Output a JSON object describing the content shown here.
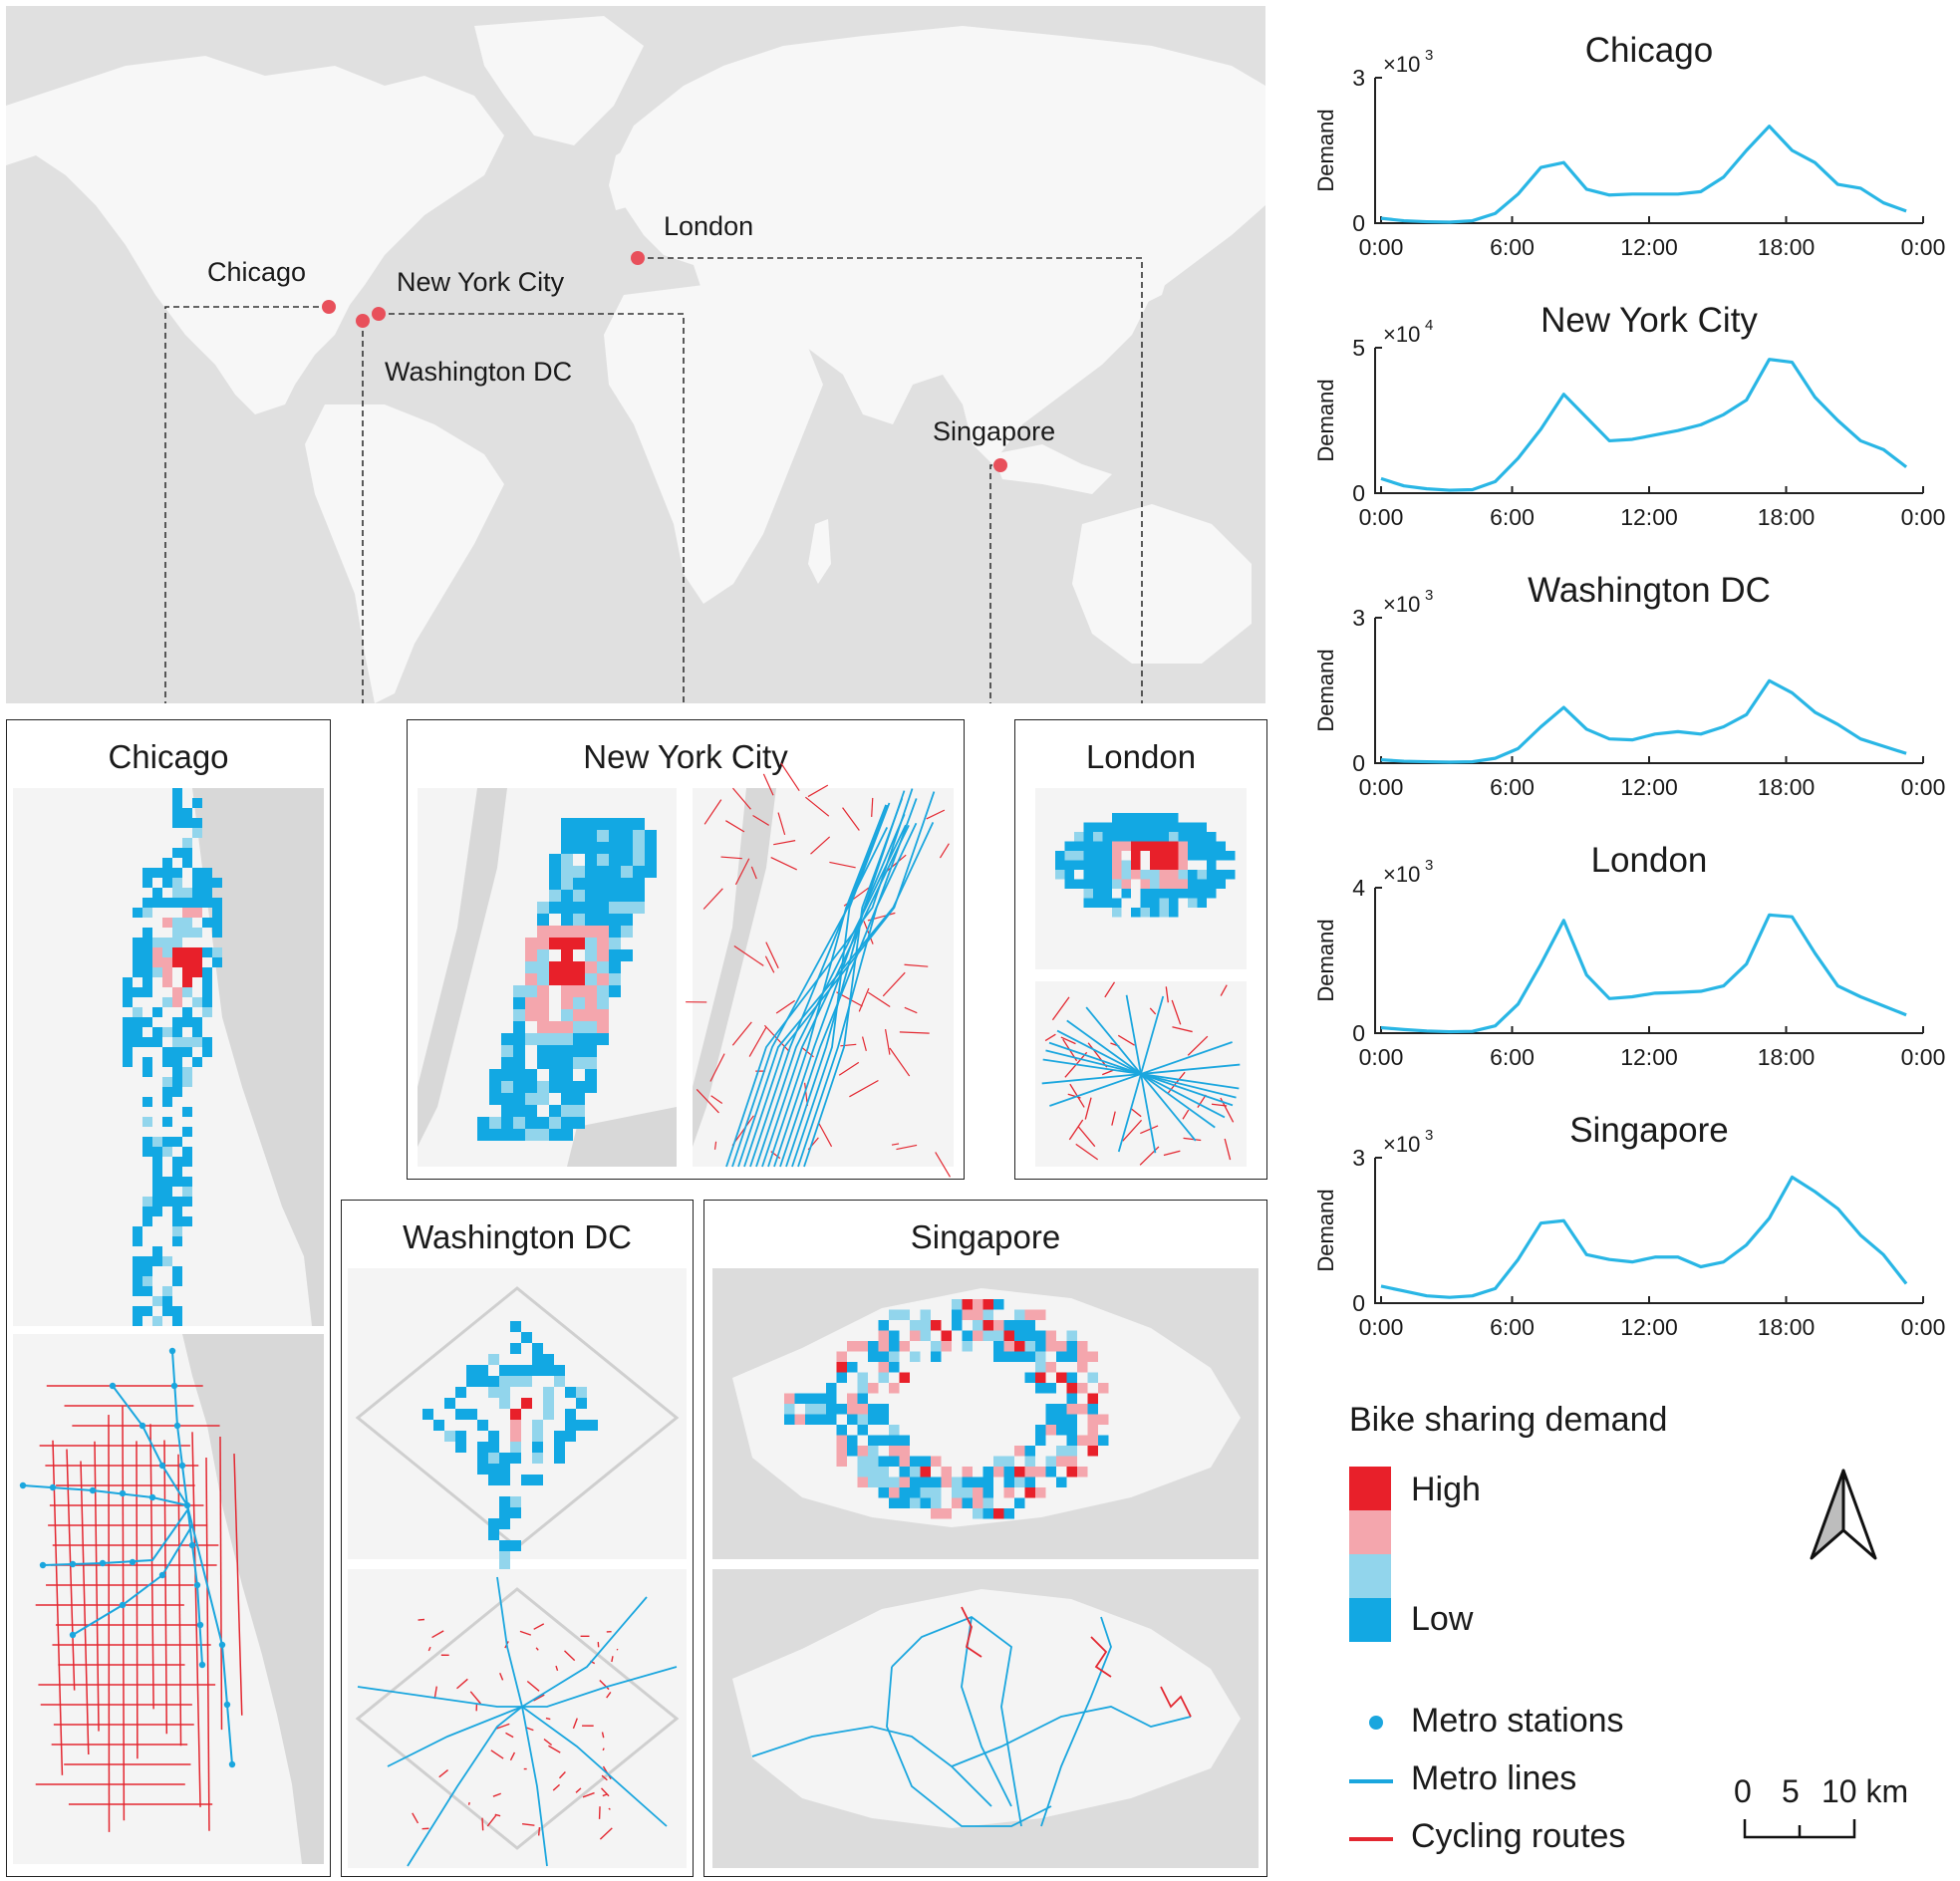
{
  "world_map": {
    "cities": [
      {
        "name": "Chicago"
      },
      {
        "name": "New York City"
      },
      {
        "name": "Washington DC"
      },
      {
        "name": "London"
      },
      {
        "name": "Singapore"
      }
    ]
  },
  "panels": {
    "chicago": {
      "title": "Chicago"
    },
    "nyc": {
      "title": "New York City"
    },
    "london": {
      "title": "London"
    },
    "washington": {
      "title": "Washington DC"
    },
    "singapore": {
      "title": "Singapore"
    }
  },
  "chart_data": [
    {
      "type": "line",
      "title": "Chicago",
      "ylabel": "Demand",
      "multiplier": "×10",
      "exponent": "3",
      "ylim": [
        0,
        3
      ],
      "yticks": [
        "0",
        "3"
      ],
      "xticks": [
        "0:00",
        "6:00",
        "12:00",
        "18:00",
        "0:00"
      ],
      "xlim": [
        0,
        24
      ],
      "x": [
        0,
        1,
        2,
        3,
        4,
        5,
        6,
        7,
        8,
        9,
        10,
        11,
        12,
        13,
        14,
        15,
        16,
        17,
        18,
        19,
        20,
        21,
        22,
        23
      ],
      "values": [
        0.1,
        0.05,
        0.03,
        0.02,
        0.05,
        0.2,
        0.6,
        1.15,
        1.25,
        0.7,
        0.58,
        0.6,
        0.6,
        0.6,
        0.65,
        0.95,
        1.5,
        2.0,
        1.5,
        1.25,
        0.8,
        0.72,
        0.42,
        0.25
      ],
      "color": "#29b6e5"
    },
    {
      "type": "line",
      "title": "New York City",
      "ylabel": "Demand",
      "multiplier": "×10",
      "exponent": "4",
      "ylim": [
        0,
        5
      ],
      "yticks": [
        "0",
        "5"
      ],
      "xticks": [
        "0:00",
        "6:00",
        "12:00",
        "18:00",
        "0:00"
      ],
      "xlim": [
        0,
        24
      ],
      "x": [
        0,
        1,
        2,
        3,
        4,
        5,
        6,
        7,
        8,
        9,
        10,
        11,
        12,
        13,
        14,
        15,
        16,
        17,
        18,
        19,
        20,
        21,
        22,
        23
      ],
      "values": [
        0.5,
        0.25,
        0.15,
        0.1,
        0.12,
        0.4,
        1.2,
        2.2,
        3.4,
        2.6,
        1.8,
        1.85,
        2.0,
        2.15,
        2.35,
        2.7,
        3.2,
        4.6,
        4.5,
        3.3,
        2.5,
        1.8,
        1.5,
        0.9
      ],
      "color": "#29b6e5"
    },
    {
      "type": "line",
      "title": "Washington DC",
      "ylabel": "Demand",
      "multiplier": "×10",
      "exponent": "3",
      "ylim": [
        0,
        3
      ],
      "yticks": [
        "0",
        "3"
      ],
      "xticks": [
        "0:00",
        "6:00",
        "12:00",
        "18:00",
        "0:00"
      ],
      "xlim": [
        0,
        24
      ],
      "x": [
        0,
        1,
        2,
        3,
        4,
        5,
        6,
        7,
        8,
        9,
        10,
        11,
        12,
        13,
        14,
        15,
        16,
        17,
        18,
        19,
        20,
        21,
        22,
        23
      ],
      "values": [
        0.07,
        0.04,
        0.03,
        0.02,
        0.03,
        0.1,
        0.3,
        0.75,
        1.15,
        0.7,
        0.5,
        0.48,
        0.6,
        0.65,
        0.6,
        0.75,
        1.0,
        1.7,
        1.45,
        1.05,
        0.8,
        0.5,
        0.35,
        0.2
      ],
      "color": "#29b6e5"
    },
    {
      "type": "line",
      "title": "London",
      "ylabel": "Demand",
      "multiplier": "×10",
      "exponent": "3",
      "ylim": [
        0,
        4
      ],
      "yticks": [
        "0",
        "4"
      ],
      "xticks": [
        "0:00",
        "6:00",
        "12:00",
        "18:00",
        "0:00"
      ],
      "xlim": [
        0,
        24
      ],
      "x": [
        0,
        1,
        2,
        3,
        4,
        5,
        6,
        7,
        8,
        9,
        10,
        11,
        12,
        13,
        14,
        15,
        16,
        17,
        18,
        19,
        20,
        21,
        22,
        23
      ],
      "values": [
        0.15,
        0.1,
        0.06,
        0.04,
        0.05,
        0.2,
        0.8,
        1.9,
        3.1,
        1.6,
        0.95,
        1.0,
        1.1,
        1.12,
        1.15,
        1.3,
        1.9,
        3.25,
        3.2,
        2.2,
        1.3,
        1.0,
        0.75,
        0.5
      ],
      "color": "#29b6e5"
    },
    {
      "type": "line",
      "title": "Singapore",
      "ylabel": "Demand",
      "multiplier": "×10",
      "exponent": "3",
      "ylim": [
        0,
        3
      ],
      "yticks": [
        "0",
        "3"
      ],
      "xticks": [
        "0:00",
        "6:00",
        "12:00",
        "18:00",
        "0:00"
      ],
      "xlim": [
        0,
        24
      ],
      "x": [
        0,
        1,
        2,
        3,
        4,
        5,
        6,
        7,
        8,
        9,
        10,
        11,
        12,
        13,
        14,
        15,
        16,
        17,
        18,
        19,
        20,
        21,
        22,
        23
      ],
      "values": [
        0.35,
        0.25,
        0.15,
        0.12,
        0.15,
        0.3,
        0.9,
        1.65,
        1.7,
        1.0,
        0.9,
        0.85,
        0.95,
        0.95,
        0.75,
        0.85,
        1.2,
        1.75,
        2.6,
        2.3,
        1.95,
        1.4,
        1.0,
        0.4
      ],
      "color": "#29b6e5"
    }
  ],
  "legend": {
    "title": "Bike sharing demand",
    "high_label": "High",
    "low_label": "Low",
    "demand_colors": [
      "#e8202a",
      "#f4a6ad",
      "#92d5ec",
      "#12a8e3"
    ],
    "metro_stations_label": "Metro stations",
    "metro_lines_label": "Metro lines",
    "cycling_routes_label": "Cycling routes",
    "metro_color": "#1aa6de",
    "cycling_color": "#e32730"
  },
  "scale_bar": {
    "labels": [
      "0",
      "5",
      "10 km"
    ]
  },
  "colors": {
    "land": "#f2f2f2",
    "water": "#e0e0e0",
    "city_dot": "#e8505b"
  }
}
